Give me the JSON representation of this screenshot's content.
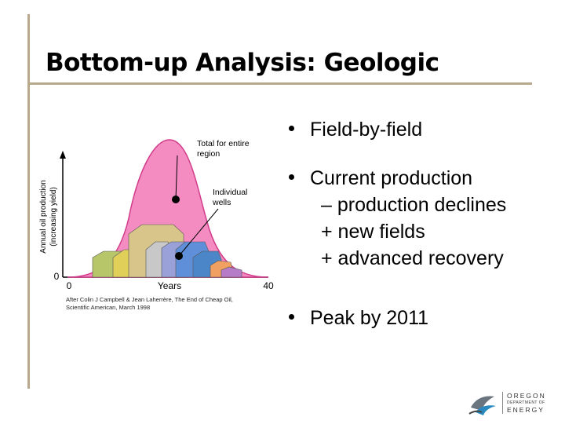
{
  "slide": {
    "title": "Bottom-up Analysis: Geologic"
  },
  "bullets": {
    "item1": "Field-by-field",
    "item2": "Current production",
    "item2_sub1": "– production declines",
    "item2_sub2": "+ new fields",
    "item2_sub3": "+ advanced recovery",
    "item3": "Peak by 2011"
  },
  "figure": {
    "y_axis_label_1": "Annual oil production",
    "y_axis_label_2": "(increasing yield)",
    "x_axis_label": "Years",
    "x_tick_start": "0",
    "x_tick_end": "40",
    "y_origin_label": "0",
    "annotation_total_1": "Total for entire",
    "annotation_total_2": "region",
    "annotation_wells_1": "Individual",
    "annotation_wells_2": "wells",
    "caption_1": "After Colin J Campbell & Jean Laherrère, The End of Cheap Oil,",
    "caption_2": "Scientific American, March 1998",
    "colors": {
      "curve_fill": "#f48cc2",
      "curve_stroke": "#d13c8a",
      "wells": [
        "#b8c66a",
        "#e0d05a",
        "#d8c58a",
        "#c8c8c8",
        "#9aa0d8",
        "#5f8fd8",
        "#4a86c8",
        "#f0a060",
        "#b77cc8"
      ]
    }
  },
  "logo": {
    "line1": "OREGON",
    "line2": "DEPARTMENT OF",
    "line3": "ENERGY"
  }
}
